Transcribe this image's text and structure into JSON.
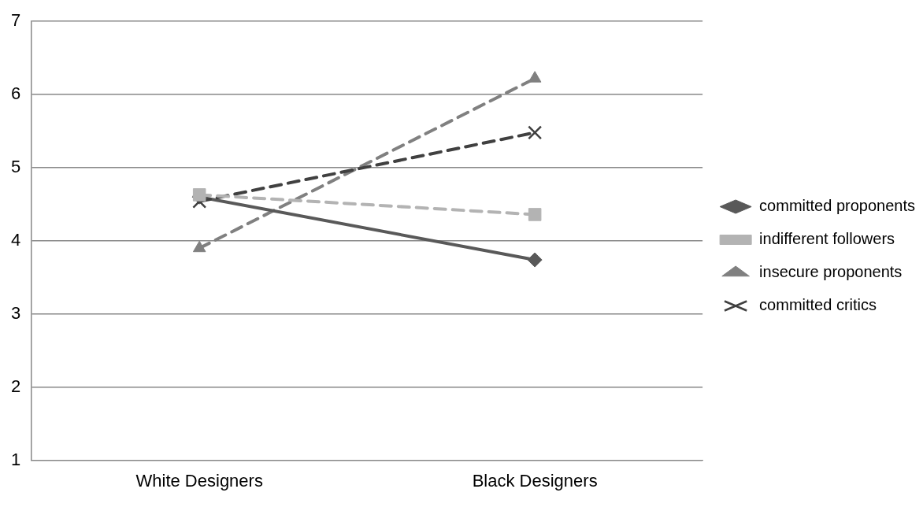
{
  "chart_data": {
    "type": "line",
    "categories": [
      "White Designers",
      "Black Designers"
    ],
    "series": [
      {
        "name": "committed proponents",
        "color": "#595959",
        "values": [
          4.6,
          3.74
        ],
        "marker": "diamond",
        "line_style": "solid"
      },
      {
        "name": "indifferent followers",
        "color": "#b3b3b3",
        "values": [
          4.63,
          4.36
        ],
        "marker": "square",
        "line_style": "dashed"
      },
      {
        "name": "insecure proponents",
        "color": "#808080",
        "values": [
          3.9,
          6.22
        ],
        "marker": "triangle",
        "line_style": "dashed"
      },
      {
        "name": "committed critics",
        "color": "#404040",
        "values": [
          4.54,
          5.48
        ],
        "marker": "cross",
        "line_style": "dashed"
      }
    ],
    "ylim": [
      1,
      7
    ],
    "yticks": [
      1,
      2,
      3,
      4,
      5,
      6,
      7
    ],
    "grid": "y",
    "legend": "right"
  }
}
